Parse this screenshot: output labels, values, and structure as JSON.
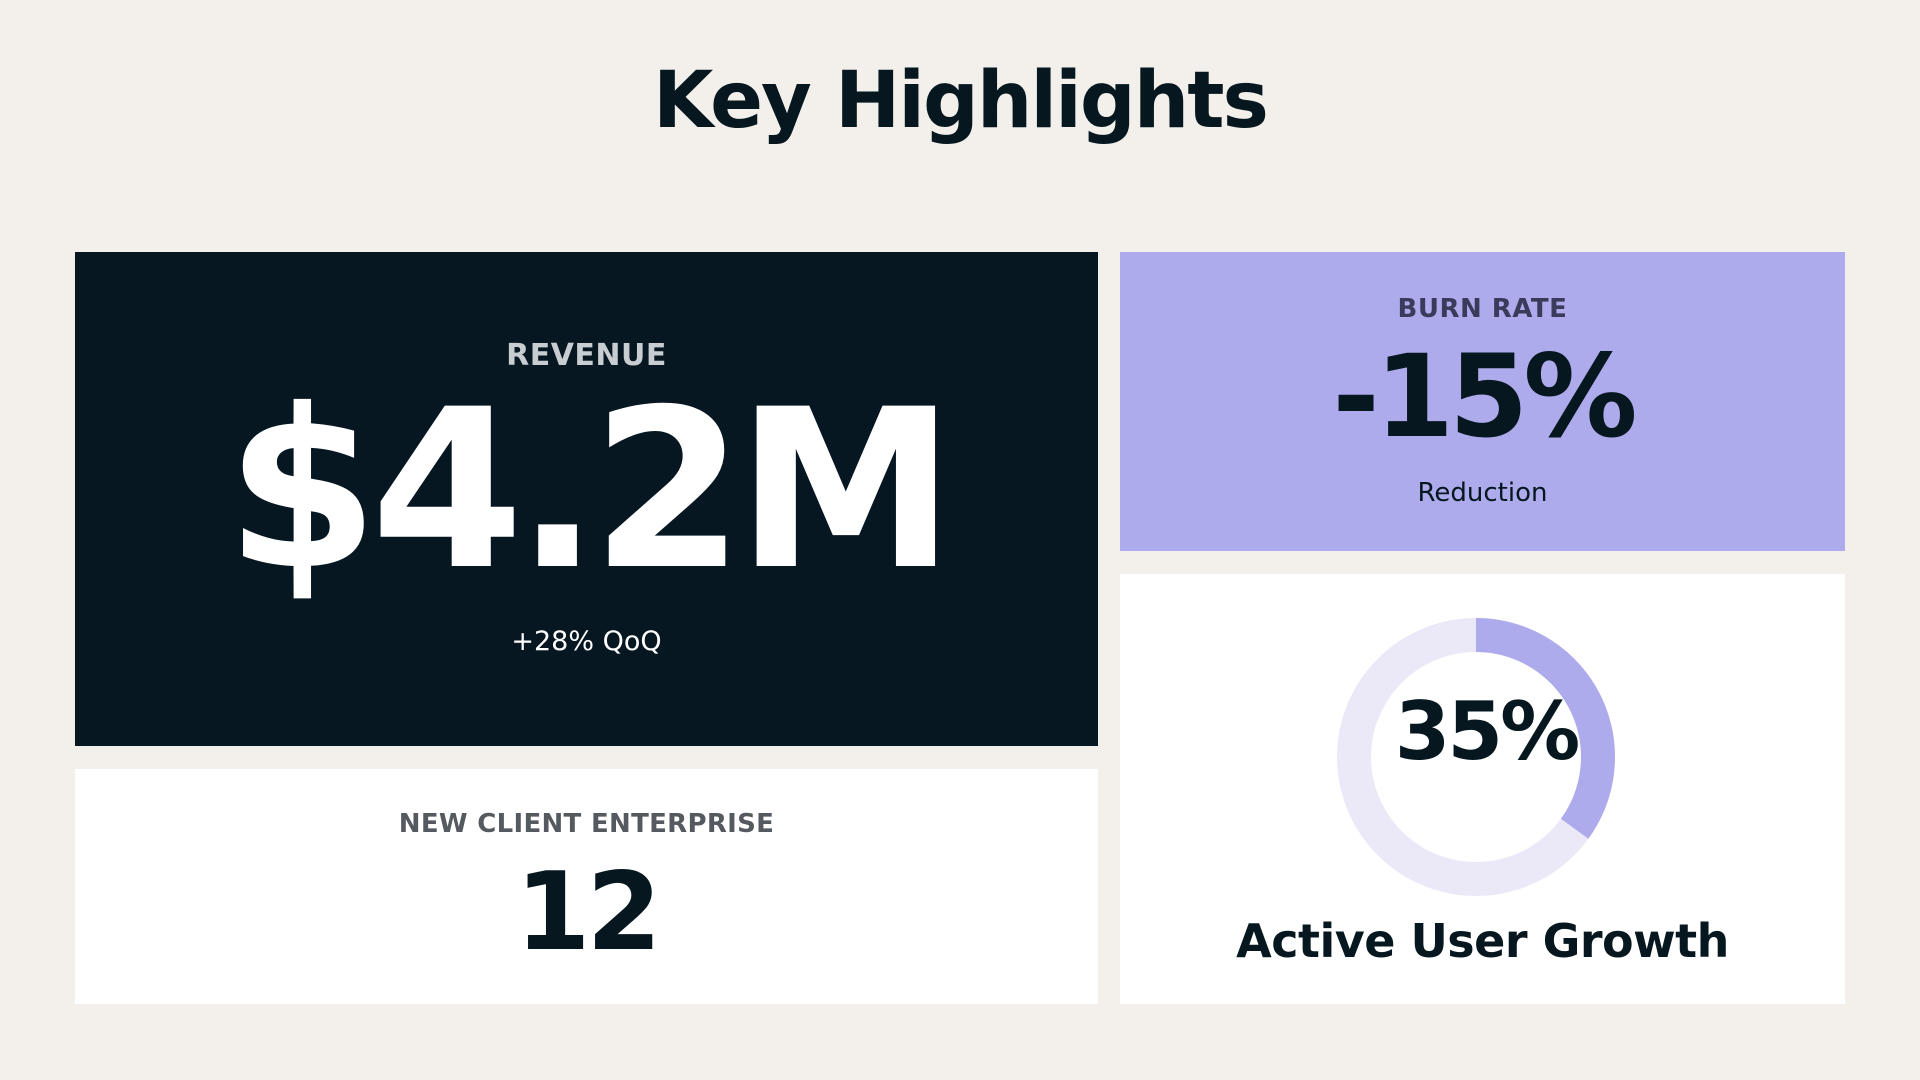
{
  "title": "Key Highlights",
  "revenue": {
    "label": "REVENUE",
    "value": "$4.2M",
    "sub": "+28% QoQ"
  },
  "burn_rate": {
    "label": "BURN RATE",
    "value": "-15%",
    "sub": "Reduction"
  },
  "new_clients": {
    "label": "NEW CLIENT ENTERPRISE",
    "value": "12"
  },
  "active_user_growth": {
    "value": "35%",
    "label": "Active User Growth",
    "progress": 0.35
  },
  "colors": {
    "background": "#f3efeb",
    "dark": "#061722",
    "accent": "#aeabec",
    "accent_light": "#ebe9f8",
    "text": "#06171f"
  }
}
